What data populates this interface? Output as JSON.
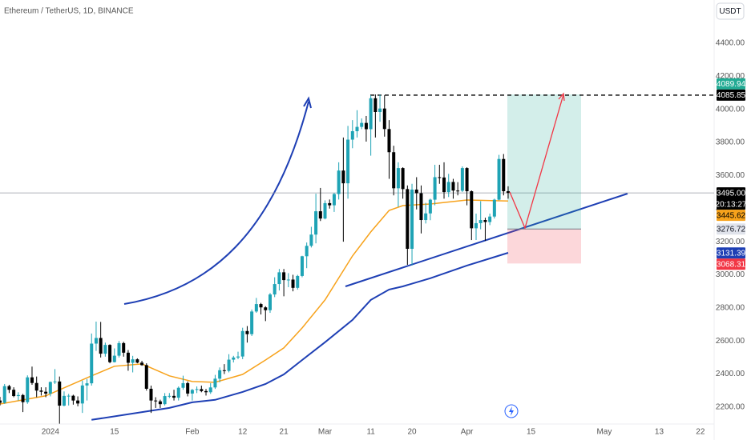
{
  "chart_data": {
    "type": "candlestick",
    "title": "Ethereum / TetherUS, 1D, BINANCE",
    "currency": "USDT",
    "up_color": "#1ea3b5",
    "down_color": "#000000",
    "xlim": [
      "2023-12-21",
      "2024-05-25"
    ],
    "ylim": [
      2098,
      4661
    ],
    "grid": false,
    "yticks": [
      {
        "value": 2200,
        "label": "2200.00"
      },
      {
        "value": 2400,
        "label": "2400.00"
      },
      {
        "value": 2600,
        "label": "2600.00"
      },
      {
        "value": 2800,
        "label": "2800.00"
      },
      {
        "value": 3000,
        "label": "3000.00"
      },
      {
        "value": 3200,
        "label": "3200.00"
      },
      {
        "value": 3400,
        "label": "3400.00"
      },
      {
        "value": 3600,
        "label": "3600.00"
      },
      {
        "value": 3800,
        "label": "3800.00"
      },
      {
        "value": 4000,
        "label": "4000.00"
      },
      {
        "value": 4200,
        "label": "4200.00"
      },
      {
        "value": 4400,
        "label": "4400.00"
      }
    ],
    "xticks": [
      {
        "value": "2024-01-01",
        "label": "2024"
      },
      {
        "value": "2024-01-15",
        "label": "15"
      },
      {
        "value": "2024-02-01",
        "label": "Feb"
      },
      {
        "value": "2024-02-12",
        "label": "12"
      },
      {
        "value": "2024-02-21",
        "label": "21"
      },
      {
        "value": "2024-03-01",
        "label": "Mar"
      },
      {
        "value": "2024-03-11",
        "label": "11"
      },
      {
        "value": "2024-03-20",
        "label": "20"
      },
      {
        "value": "2024-04-01",
        "label": "Apr"
      },
      {
        "value": "2024-04-15",
        "label": "15"
      },
      {
        "value": "2024-05-01",
        "label": "May"
      },
      {
        "value": "2024-05-13",
        "label": "13"
      },
      {
        "value": "2024-05-22",
        "label": "22"
      }
    ],
    "candles": {
      "x": [
        "2023-12-21",
        "2023-12-22",
        "2023-12-23",
        "2023-12-24",
        "2023-12-25",
        "2023-12-26",
        "2023-12-27",
        "2023-12-28",
        "2023-12-29",
        "2023-12-30",
        "2023-12-31",
        "2024-01-01",
        "2024-01-02",
        "2024-01-03",
        "2024-01-04",
        "2024-01-05",
        "2024-01-06",
        "2024-01-07",
        "2024-01-08",
        "2024-01-09",
        "2024-01-10",
        "2024-01-11",
        "2024-01-12",
        "2024-01-13",
        "2024-01-14",
        "2024-01-15",
        "2024-01-16",
        "2024-01-17",
        "2024-01-18",
        "2024-01-19",
        "2024-01-20",
        "2024-01-21",
        "2024-01-22",
        "2024-01-23",
        "2024-01-24",
        "2024-01-25",
        "2024-01-26",
        "2024-01-27",
        "2024-01-28",
        "2024-01-29",
        "2024-01-30",
        "2024-01-31",
        "2024-02-01",
        "2024-02-02",
        "2024-02-03",
        "2024-02-04",
        "2024-02-05",
        "2024-02-06",
        "2024-02-07",
        "2024-02-08",
        "2024-02-09",
        "2024-02-10",
        "2024-02-11",
        "2024-02-12",
        "2024-02-13",
        "2024-02-14",
        "2024-02-15",
        "2024-02-16",
        "2024-02-17",
        "2024-02-18",
        "2024-02-19",
        "2024-02-20",
        "2024-02-21",
        "2024-02-22",
        "2024-02-23",
        "2024-02-24",
        "2024-02-25",
        "2024-02-26",
        "2024-02-27",
        "2024-02-28",
        "2024-02-29",
        "2024-03-01",
        "2024-03-02",
        "2024-03-03",
        "2024-03-04",
        "2024-03-05",
        "2024-03-06",
        "2024-03-07",
        "2024-03-08",
        "2024-03-09",
        "2024-03-10",
        "2024-03-11",
        "2024-03-12",
        "2024-03-13",
        "2024-03-14",
        "2024-03-15",
        "2024-03-16",
        "2024-03-17",
        "2024-03-18",
        "2024-03-19",
        "2024-03-20",
        "2024-03-21",
        "2024-03-22",
        "2024-03-23",
        "2024-03-24",
        "2024-03-25",
        "2024-03-26",
        "2024-03-27",
        "2024-03-28",
        "2024-03-29",
        "2024-03-30",
        "2024-03-31",
        "2024-04-01",
        "2024-04-02",
        "2024-04-03",
        "2024-04-04",
        "2024-04-05",
        "2024-04-06",
        "2024-04-07",
        "2024-04-08",
        "2024-04-09",
        "2024-04-10"
      ],
      "open": [
        2240,
        2226,
        2327,
        2305,
        2267,
        2273,
        2230,
        2380,
        2346,
        2300,
        2293,
        2282,
        2352,
        2355,
        2209,
        2268,
        2269,
        2240,
        2222,
        2331,
        2344,
        2584,
        2618,
        2523,
        2576,
        2472,
        2511,
        2587,
        2529,
        2468,
        2489,
        2469,
        2454,
        2311,
        2240,
        2235,
        2218,
        2267,
        2268,
        2257,
        2317,
        2345,
        2282,
        2304,
        2309,
        2297,
        2290,
        2319,
        2372,
        2423,
        2419,
        2487,
        2500,
        2506,
        2660,
        2641,
        2778,
        2823,
        2803,
        2786,
        2881,
        2944,
        3015,
        2968,
        2971,
        2921,
        2993,
        3112,
        3175,
        3243,
        3384,
        3340,
        3433,
        3420,
        3488,
        3630,
        3553,
        3817,
        3868,
        3894,
        3918,
        3880,
        4067,
        3984,
        4005,
        3881,
        3741,
        3523,
        3645,
        3518,
        3157,
        3515,
        3493,
        3331,
        3371,
        3454,
        3590,
        3588,
        3500,
        3561,
        3509,
        3508,
        3645,
        3505,
        3281,
        3312,
        3331,
        3319,
        3352,
        3454,
        3700,
        3505
      ],
      "high": [
        2262,
        2340,
        2335,
        2320,
        2290,
        2280,
        2392,
        2445,
        2385,
        2320,
        2320,
        2355,
        2430,
        2385,
        2295,
        2280,
        2275,
        2265,
        2360,
        2370,
        2645,
        2717,
        2715,
        2590,
        2580,
        2555,
        2600,
        2595,
        2545,
        2510,
        2495,
        2480,
        2465,
        2330,
        2260,
        2245,
        2285,
        2285,
        2305,
        2325,
        2390,
        2355,
        2310,
        2325,
        2330,
        2310,
        2345,
        2395,
        2440,
        2460,
        2520,
        2510,
        2535,
        2680,
        2690,
        2790,
        2860,
        2830,
        2810,
        2890,
        2985,
        3035,
        3035,
        3010,
        3000,
        3000,
        3115,
        3195,
        3290,
        3490,
        3525,
        3450,
        3455,
        3495,
        3680,
        3830,
        3900,
        3935,
        3995,
        3945,
        3960,
        4085,
        4090,
        4090,
        4085,
        3935,
        3780,
        3680,
        3650,
        3540,
        3550,
        3590,
        3540,
        3435,
        3460,
        3665,
        3665,
        3680,
        3610,
        3580,
        3560,
        3655,
        3650,
        3510,
        3370,
        3445,
        3345,
        3370,
        3460,
        3725,
        3730,
        3535
      ],
      "low": [
        2210,
        2220,
        2285,
        2260,
        2240,
        2170,
        2220,
        2335,
        2260,
        2270,
        2260,
        2265,
        2340,
        2100,
        2205,
        2210,
        2215,
        2205,
        2165,
        2240,
        2330,
        2540,
        2500,
        2505,
        2465,
        2470,
        2500,
        2505,
        2420,
        2410,
        2465,
        2450,
        2300,
        2165,
        2195,
        2195,
        2210,
        2255,
        2240,
        2240,
        2305,
        2265,
        2240,
        2285,
        2290,
        2270,
        2280,
        2310,
        2350,
        2400,
        2410,
        2470,
        2490,
        2490,
        2590,
        2630,
        2770,
        2760,
        2720,
        2770,
        2865,
        2905,
        2870,
        2925,
        2900,
        2910,
        2985,
        3040,
        3165,
        3190,
        3325,
        3335,
        3400,
        3380,
        3455,
        3200,
        3460,
        3765,
        3830,
        3880,
        3805,
        3720,
        3830,
        3925,
        3835,
        3580,
        3480,
        3410,
        3460,
        3060,
        3056,
        3395,
        3250,
        3310,
        3330,
        3420,
        3550,
        3460,
        3470,
        3460,
        3480,
        3500,
        3420,
        3210,
        3210,
        3275,
        3205,
        3300,
        3340,
        3450,
        3480,
        3460
      ],
      "close": [
        2226,
        2327,
        2305,
        2267,
        2273,
        2230,
        2380,
        2346,
        2300,
        2293,
        2282,
        2352,
        2355,
        2209,
        2268,
        2269,
        2240,
        2222,
        2331,
        2344,
        2584,
        2618,
        2523,
        2576,
        2472,
        2511,
        2587,
        2529,
        2468,
        2489,
        2469,
        2454,
        2311,
        2240,
        2235,
        2218,
        2267,
        2268,
        2257,
        2317,
        2345,
        2282,
        2304,
        2309,
        2297,
        2290,
        2319,
        2372,
        2423,
        2419,
        2487,
        2500,
        2506,
        2660,
        2641,
        2778,
        2823,
        2803,
        2786,
        2881,
        2944,
        3015,
        2968,
        2971,
        2921,
        2993,
        3112,
        3175,
        3243,
        3384,
        3340,
        3433,
        3420,
        3488,
        3630,
        3553,
        3817,
        3868,
        3894,
        3918,
        3880,
        4067,
        3984,
        4005,
        3881,
        3741,
        3523,
        3645,
        3518,
        3157,
        3515,
        3493,
        3331,
        3371,
        3454,
        3590,
        3588,
        3500,
        3561,
        3509,
        3508,
        3645,
        3505,
        3281,
        3312,
        3331,
        3319,
        3352,
        3454,
        3700,
        3505,
        3495
      ]
    },
    "indicators": [
      {
        "color": "#f7a21b",
        "x": [
          "2023-12-21",
          "2023-12-31",
          "2024-01-10",
          "2024-01-15",
          "2024-01-21",
          "2024-01-27",
          "2024-02-01",
          "2024-02-06",
          "2024-02-12",
          "2024-02-17",
          "2024-02-21",
          "2024-02-25",
          "2024-03-01",
          "2024-03-07",
          "2024-03-11",
          "2024-03-15",
          "2024-03-18",
          "2024-03-24",
          "2024-04-01",
          "2024-04-10"
        ],
        "values": [
          2219,
          2268,
          2389,
          2447,
          2461,
          2389,
          2355,
          2350,
          2398,
          2485,
          2558,
          2679,
          2848,
          3114,
          3259,
          3389,
          3418,
          3428,
          3452,
          3446
        ]
      },
      {
        "color": "#1e3fb4",
        "x": [
          "2024-01-10",
          "2024-01-27",
          "2024-02-01",
          "2024-02-06",
          "2024-02-12",
          "2024-02-17",
          "2024-02-21",
          "2024-02-25",
          "2024-03-01",
          "2024-03-07",
          "2024-03-11",
          "2024-03-15",
          "2024-03-18",
          "2024-03-24",
          "2024-04-01",
          "2024-04-10"
        ],
        "values": [
          2123,
          2195,
          2229,
          2244,
          2292,
          2340,
          2398,
          2485,
          2592,
          2727,
          2848,
          2911,
          2930,
          2979,
          3056,
          3133
        ]
      }
    ],
    "price_labels": [
      {
        "value": 4089.94,
        "color": "#22ab94",
        "text_color": "#ffffff"
      },
      {
        "value": 4085.85,
        "color": "#000000",
        "text_color": "#ffffff"
      },
      {
        "value": 3495,
        "label": "3495.00",
        "color": "#000000",
        "text_color": "#ffffff",
        "countdown": "20:13:27"
      },
      {
        "value": 3445.62,
        "color": "#f7a21b",
        "text_color": "#000000"
      },
      {
        "value": 3276.72,
        "color": "#e0e3eb",
        "text_color": "#131722"
      },
      {
        "value": 3131.39,
        "color": "#1e3fb4",
        "text_color": "#ffffff"
      },
      {
        "value": 3068.31,
        "color": "#f23645",
        "text_color": "#ffffff"
      }
    ]
  }
}
